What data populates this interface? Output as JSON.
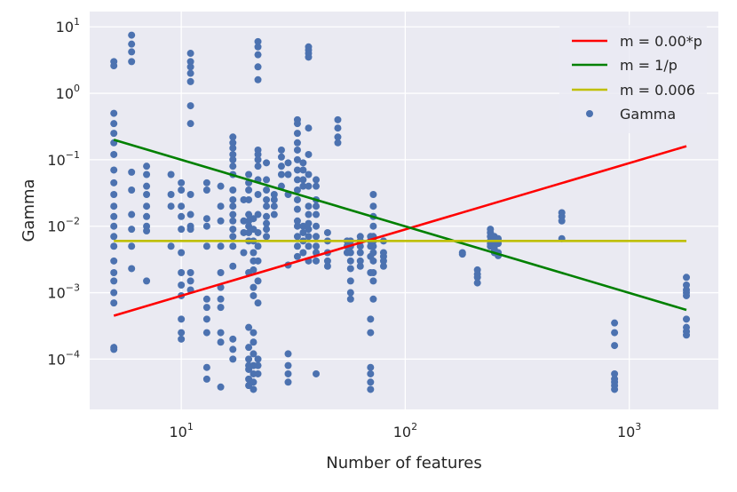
{
  "chart_data": {
    "type": "scatter",
    "xlabel": "Number of features",
    "ylabel": "Gamma",
    "xscale": "log",
    "yscale": "log",
    "xlim": [
      3.9,
      2500
    ],
    "ylim": [
      1.75e-05,
      17
    ],
    "grid": true,
    "legend_position": "top-right",
    "xticks": [
      {
        "value": 10,
        "base": "10",
        "exp": "1"
      },
      {
        "value": 100,
        "base": "10",
        "exp": "2"
      },
      {
        "value": 1000,
        "base": "10",
        "exp": "3"
      }
    ],
    "yticks": [
      {
        "value": 10,
        "base": "10",
        "exp": "1"
      },
      {
        "value": 1,
        "base": "10",
        "exp": "0"
      },
      {
        "value": 0.1,
        "base": "10",
        "exp": "−1"
      },
      {
        "value": 0.01,
        "base": "10",
        "exp": "−2"
      },
      {
        "value": 0.001,
        "base": "10",
        "exp": "−3"
      },
      {
        "value": 0.0001,
        "base": "10",
        "exp": "−4"
      }
    ],
    "lines": [
      {
        "name": "m = 0.00*p",
        "color": "#ff0000",
        "x": [
          5,
          1800
        ],
        "y": [
          0.00045,
          0.16
        ]
      },
      {
        "name": "m = 1/p",
        "color": "#008000",
        "x": [
          5,
          1800
        ],
        "y": [
          0.2,
          0.00055
        ]
      },
      {
        "name": "m = 0.006",
        "color": "#bfbf00",
        "x": [
          5,
          1800
        ],
        "y": [
          0.006,
          0.006
        ]
      }
    ],
    "scatter": {
      "name": "Gamma",
      "color": "#4c72b0",
      "points": [
        [
          5,
          2.6
        ],
        [
          5,
          3.0
        ],
        [
          5,
          0.5
        ],
        [
          5,
          0.35
        ],
        [
          5,
          0.25
        ],
        [
          5,
          0.18
        ],
        [
          5,
          0.12
        ],
        [
          5,
          0.07
        ],
        [
          5,
          0.045
        ],
        [
          5,
          0.03
        ],
        [
          5,
          0.02
        ],
        [
          5,
          0.014
        ],
        [
          5,
          0.01
        ],
        [
          5,
          0.007
        ],
        [
          5,
          0.005
        ],
        [
          5,
          0.003
        ],
        [
          5,
          0.002
        ],
        [
          5,
          0.0015
        ],
        [
          5,
          0.001
        ],
        [
          5,
          0.0007
        ],
        [
          5,
          0.00015
        ],
        [
          5,
          0.00014
        ],
        [
          6,
          7.5
        ],
        [
          6,
          5.5
        ],
        [
          6,
          4.2
        ],
        [
          6,
          3.0
        ],
        [
          6,
          0.065
        ],
        [
          6,
          0.035
        ],
        [
          6,
          0.015
        ],
        [
          6,
          0.009
        ],
        [
          6,
          0.005
        ],
        [
          6,
          0.0023
        ],
        [
          7,
          0.08
        ],
        [
          7,
          0.06
        ],
        [
          7,
          0.04
        ],
        [
          7,
          0.03
        ],
        [
          7,
          0.02
        ],
        [
          7,
          0.014
        ],
        [
          7,
          0.01
        ],
        [
          7,
          0.0085
        ],
        [
          7,
          0.0015
        ],
        [
          9,
          0.06
        ],
        [
          9,
          0.03
        ],
        [
          9,
          0.02
        ],
        [
          9,
          0.005
        ],
        [
          10,
          0.045
        ],
        [
          10,
          0.035
        ],
        [
          10,
          0.02
        ],
        [
          10,
          0.014
        ],
        [
          10,
          0.009
        ],
        [
          10,
          0.004
        ],
        [
          10,
          0.002
        ],
        [
          10,
          0.0013
        ],
        [
          10,
          0.0009
        ],
        [
          10,
          0.0004
        ],
        [
          10,
          0.00025
        ],
        [
          10,
          0.0002
        ],
        [
          11,
          4.0
        ],
        [
          11,
          3.0
        ],
        [
          11,
          2.5
        ],
        [
          11,
          2.0
        ],
        [
          11,
          1.5
        ],
        [
          11,
          0.65
        ],
        [
          11,
          0.35
        ],
        [
          11,
          0.03
        ],
        [
          11,
          0.015
        ],
        [
          11,
          0.01
        ],
        [
          11,
          0.009
        ],
        [
          11,
          0.002
        ],
        [
          11,
          0.0015
        ],
        [
          11,
          0.0011
        ],
        [
          13,
          0.045
        ],
        [
          13,
          0.035
        ],
        [
          13,
          0.013
        ],
        [
          13,
          0.01
        ],
        [
          13,
          0.005
        ],
        [
          13,
          0.0008
        ],
        [
          13,
          0.0006
        ],
        [
          13,
          0.0004
        ],
        [
          13,
          0.00025
        ],
        [
          13,
          7.5e-05
        ],
        [
          13,
          5e-05
        ],
        [
          15,
          0.04
        ],
        [
          15,
          0.02
        ],
        [
          15,
          0.012
        ],
        [
          15,
          0.005
        ],
        [
          15,
          0.002
        ],
        [
          15,
          0.0012
        ],
        [
          15,
          0.0008
        ],
        [
          15,
          0.0006
        ],
        [
          15,
          0.00025
        ],
        [
          15,
          0.00018
        ],
        [
          15,
          3.8e-05
        ],
        [
          17,
          0.22
        ],
        [
          17,
          0.18
        ],
        [
          17,
          0.15
        ],
        [
          17,
          0.12
        ],
        [
          17,
          0.1
        ],
        [
          17,
          0.08
        ],
        [
          17,
          0.06
        ],
        [
          17,
          0.035
        ],
        [
          17,
          0.025
        ],
        [
          17,
          0.02
        ],
        [
          17,
          0.015
        ],
        [
          17,
          0.012
        ],
        [
          17,
          0.009
        ],
        [
          17,
          0.007
        ],
        [
          17,
          0.005
        ],
        [
          17,
          0.0025
        ],
        [
          17,
          0.0002
        ],
        [
          17,
          0.00014
        ],
        [
          17,
          0.0001
        ],
        [
          19,
          0.025
        ],
        [
          19,
          0.012
        ],
        [
          19,
          0.008
        ],
        [
          19,
          0.004
        ],
        [
          20,
          0.06
        ],
        [
          20,
          0.045
        ],
        [
          20,
          0.035
        ],
        [
          20,
          0.025
        ],
        [
          20,
          0.015
        ],
        [
          20,
          0.012
        ],
        [
          20,
          0.01
        ],
        [
          20,
          0.008
        ],
        [
          20,
          0.006
        ],
        [
          20,
          0.002
        ],
        [
          20,
          0.0003
        ],
        [
          20,
          0.00015
        ],
        [
          20,
          0.0001
        ],
        [
          20,
          8e-05
        ],
        [
          20,
          7e-05
        ],
        [
          20,
          5e-05
        ],
        [
          20,
          4e-05
        ],
        [
          21,
          0.013
        ],
        [
          21,
          0.009
        ],
        [
          21,
          0.006
        ],
        [
          21,
          0.004
        ],
        [
          21,
          0.003
        ],
        [
          21,
          0.0022
        ],
        [
          21,
          0.0012
        ],
        [
          21,
          0.0009
        ],
        [
          21,
          0.00025
        ],
        [
          21,
          0.00018
        ],
        [
          21,
          0.00012
        ],
        [
          21,
          8e-05
        ],
        [
          21,
          6e-05
        ],
        [
          21,
          4.5e-05
        ],
        [
          21,
          3.5e-05
        ],
        [
          22,
          6.0
        ],
        [
          22,
          5.0
        ],
        [
          22,
          3.8
        ],
        [
          22,
          2.5
        ],
        [
          22,
          1.6
        ],
        [
          22,
          0.14
        ],
        [
          22,
          0.12
        ],
        [
          22,
          0.1
        ],
        [
          22,
          0.08
        ],
        [
          22,
          0.05
        ],
        [
          22,
          0.03
        ],
        [
          22,
          0.015
        ],
        [
          22,
          0.008
        ],
        [
          22,
          0.005
        ],
        [
          22,
          0.003
        ],
        [
          22,
          0.0015
        ],
        [
          22,
          0.0007
        ],
        [
          22,
          0.0001
        ],
        [
          22,
          8e-05
        ],
        [
          22,
          6e-05
        ],
        [
          24,
          0.09
        ],
        [
          24,
          0.05
        ],
        [
          24,
          0.035
        ],
        [
          24,
          0.025
        ],
        [
          24,
          0.02
        ],
        [
          24,
          0.014
        ],
        [
          24,
          0.011
        ],
        [
          24,
          0.009
        ],
        [
          24,
          0.007
        ],
        [
          26,
          0.03
        ],
        [
          26,
          0.025
        ],
        [
          26,
          0.02
        ],
        [
          26,
          0.015
        ],
        [
          28,
          0.14
        ],
        [
          28,
          0.11
        ],
        [
          28,
          0.08
        ],
        [
          28,
          0.06
        ],
        [
          28,
          0.04
        ],
        [
          30,
          0.09
        ],
        [
          30,
          0.06
        ],
        [
          30,
          0.03
        ],
        [
          30,
          0.0026
        ],
        [
          30,
          0.00012
        ],
        [
          30,
          8e-05
        ],
        [
          30,
          6e-05
        ],
        [
          30,
          4.5e-05
        ],
        [
          33,
          0.4
        ],
        [
          33,
          0.35
        ],
        [
          33,
          0.25
        ],
        [
          33,
          0.18
        ],
        [
          33,
          0.14
        ],
        [
          33,
          0.1
        ],
        [
          33,
          0.07
        ],
        [
          33,
          0.05
        ],
        [
          33,
          0.035
        ],
        [
          33,
          0.025
        ],
        [
          33,
          0.018
        ],
        [
          33,
          0.012
        ],
        [
          33,
          0.01
        ],
        [
          33,
          0.007
        ],
        [
          33,
          0.005
        ],
        [
          33,
          0.0035
        ],
        [
          35,
          0.09
        ],
        [
          35,
          0.07
        ],
        [
          35,
          0.05
        ],
        [
          35,
          0.04
        ],
        [
          35,
          0.01
        ],
        [
          35,
          0.008
        ],
        [
          35,
          0.006
        ],
        [
          35,
          0.004
        ],
        [
          37,
          5.0
        ],
        [
          37,
          4.5
        ],
        [
          37,
          4.0
        ],
        [
          37,
          3.5
        ],
        [
          37,
          0.3
        ],
        [
          37,
          0.12
        ],
        [
          37,
          0.06
        ],
        [
          37,
          0.04
        ],
        [
          37,
          0.02
        ],
        [
          37,
          0.015
        ],
        [
          37,
          0.011
        ],
        [
          37,
          0.009
        ],
        [
          37,
          0.007
        ],
        [
          37,
          0.005
        ],
        [
          37,
          0.003
        ],
        [
          40,
          0.05
        ],
        [
          40,
          0.04
        ],
        [
          40,
          0.025
        ],
        [
          40,
          0.02
        ],
        [
          40,
          0.015
        ],
        [
          40,
          0.01
        ],
        [
          40,
          0.007
        ],
        [
          40,
          0.005
        ],
        [
          40,
          0.004
        ],
        [
          40,
          0.003
        ],
        [
          40,
          6e-05
        ],
        [
          45,
          0.008
        ],
        [
          45,
          0.006
        ],
        [
          45,
          0.004
        ],
        [
          45,
          0.003
        ],
        [
          45,
          0.0025
        ],
        [
          50,
          0.4
        ],
        [
          50,
          0.3
        ],
        [
          50,
          0.22
        ],
        [
          50,
          0.18
        ],
        [
          55,
          0.006
        ],
        [
          55,
          0.005
        ],
        [
          55,
          0.004
        ],
        [
          57,
          0.006
        ],
        [
          57,
          0.005
        ],
        [
          57,
          0.004
        ],
        [
          57,
          0.003
        ],
        [
          57,
          0.0023
        ],
        [
          57,
          0.0015
        ],
        [
          57,
          0.001
        ],
        [
          57,
          0.0008
        ],
        [
          63,
          0.007
        ],
        [
          63,
          0.006
        ],
        [
          63,
          0.005
        ],
        [
          63,
          0.004
        ],
        [
          63,
          0.003
        ],
        [
          63,
          0.0025
        ],
        [
          70,
          0.007
        ],
        [
          70,
          0.006
        ],
        [
          70,
          0.005
        ],
        [
          70,
          0.0035
        ],
        [
          70,
          0.002
        ],
        [
          70,
          0.0004
        ],
        [
          70,
          0.00025
        ],
        [
          70,
          7.5e-05
        ],
        [
          70,
          6e-05
        ],
        [
          70,
          4.5e-05
        ],
        [
          70,
          3.5e-05
        ],
        [
          72,
          0.03
        ],
        [
          72,
          0.02
        ],
        [
          72,
          0.014
        ],
        [
          72,
          0.01
        ],
        [
          72,
          0.007
        ],
        [
          72,
          0.006
        ],
        [
          72,
          0.005
        ],
        [
          72,
          0.004
        ],
        [
          72,
          0.003
        ],
        [
          72,
          0.002
        ],
        [
          72,
          0.0015
        ],
        [
          72,
          0.0008
        ],
        [
          80,
          0.006
        ],
        [
          80,
          0.004
        ],
        [
          80,
          0.0035
        ],
        [
          80,
          0.003
        ],
        [
          80,
          0.0025
        ],
        [
          180,
          0.004
        ],
        [
          180,
          0.0038
        ],
        [
          210,
          0.0022
        ],
        [
          210,
          0.0019
        ],
        [
          210,
          0.0017
        ],
        [
          210,
          0.0014
        ],
        [
          240,
          0.009
        ],
        [
          240,
          0.008
        ],
        [
          240,
          0.007
        ],
        [
          240,
          0.006
        ],
        [
          240,
          0.0055
        ],
        [
          240,
          0.005
        ],
        [
          250,
          0.007
        ],
        [
          250,
          0.0065
        ],
        [
          250,
          0.006
        ],
        [
          250,
          0.005
        ],
        [
          250,
          0.0045
        ],
        [
          250,
          0.004
        ],
        [
          260,
          0.0065
        ],
        [
          260,
          0.006
        ],
        [
          260,
          0.0055
        ],
        [
          260,
          0.004
        ],
        [
          260,
          0.0036
        ],
        [
          500,
          0.016
        ],
        [
          500,
          0.014
        ],
        [
          500,
          0.012
        ],
        [
          500,
          0.0065
        ],
        [
          860,
          0.00035
        ],
        [
          860,
          0.00025
        ],
        [
          860,
          0.00016
        ],
        [
          860,
          6e-05
        ],
        [
          860,
          5e-05
        ],
        [
          860,
          4.5e-05
        ],
        [
          860,
          4e-05
        ],
        [
          860,
          3.5e-05
        ],
        [
          1800,
          0.0017
        ],
        [
          1800,
          0.0013
        ],
        [
          1800,
          0.0011
        ],
        [
          1800,
          0.001
        ],
        [
          1800,
          0.0009
        ],
        [
          1800,
          0.0004
        ],
        [
          1800,
          0.0003
        ],
        [
          1800,
          0.00026
        ],
        [
          1800,
          0.00023
        ]
      ]
    }
  }
}
